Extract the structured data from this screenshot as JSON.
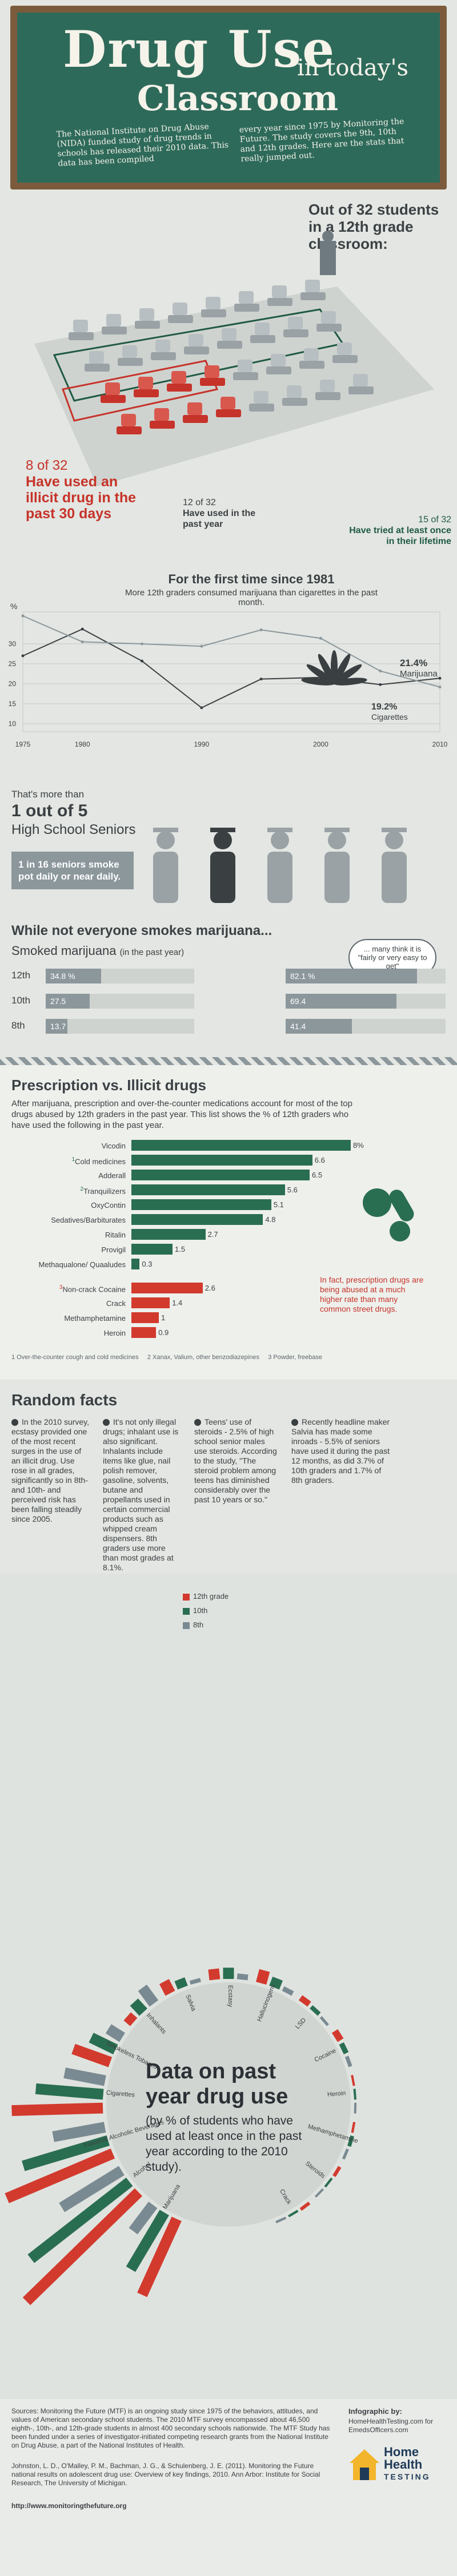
{
  "header": {
    "title_line1": "Drug Use",
    "title_line2": "in today's",
    "title_line3": "Classroom",
    "intro_left": "The National Institute on Drug Abuse (NIDA) funded study of drug trends in schools has released their 2010 data. This data has been compiled",
    "intro_right": "every year since 1975 by Monitoring the Future. The study covers the 9th, 10th and 12th grades. Here are the stats that really jumped out."
  },
  "classroom": {
    "heading": "Out of 32 students in a 12th grade classroom:",
    "stat1_num": "8 of 32",
    "stat1_text": "Have used an illicit drug in the past 30 days",
    "stat2_num": "12 of 32",
    "stat2_text": "Have used in the past year",
    "stat3_num": "15 of 32",
    "stat3_text": "Have tried at least once in their lifetime"
  },
  "trend": {
    "title": "For the first time since 1981",
    "subtitle": "More 12th graders consumed marijuana than cigarettes in the past month.",
    "y_unit": "%",
    "marijuana_label": "Marijuana",
    "marijuana_value": "21.4%",
    "cigarettes_label": "Cigarettes",
    "cigarettes_value": "19.2%"
  },
  "seniors": {
    "line1": "That's more than",
    "line2": "1 out of 5",
    "line3": "High School Seniors",
    "box": "1 in 16 seniors smoke pot daily or near daily."
  },
  "smoked": {
    "heading": "While not everyone smokes marijuana...",
    "subheading": "Smoked marijuana",
    "subheading_note": "(in the past year)",
    "bubble": "... many think it is \"fairly or very easy to get\"",
    "grades": [
      "12th",
      "10th",
      "8th"
    ]
  },
  "prescription": {
    "heading": "Prescription vs. Illicit drugs",
    "description": "After marijuana, prescription and over-the-counter medications account for most of the top drugs abused by 12th graders in the past year. This list shows the % of 12th graders who have used the following in the past year.",
    "note": "In fact, prescription drugs are being abused at a much higher rate than many common street drugs.",
    "footnote1": "1 Over-the-counter cough and cold medicines",
    "footnote2": "2 Xanax, Valium, other benzodiazepines",
    "footnote3": "3 Powder, freebase"
  },
  "facts": {
    "heading": "Random facts",
    "items": [
      "In the 2010 survey, ecstasy provided one of the most recent surges in the use of an illicit drug. Use rose in all grades, significantly so in 8th- and 10th- and perceived risk has been falling steadily since 2005.",
      "It's not only illegal drugs; inhalant use is also significant. Inhalants include items like glue, nail polish remover, gasoline, solvents, butane and propellants used in certain commercial products such as whipped cream dispensers. 8th graders use more than most grades at 8.1%.",
      "Teens' use of steroids - 2.5% of high school senior males use steroids. According to the study, \"The steroid problem among teens has diminished considerably over the past 10 years or so.\"",
      "Recently headline maker Salvia has made some inroads - 5.5% of seniors have used it during the past 12 months, as did 3.7% of 10th graders and 1.7% of 8th graders."
    ]
  },
  "radial": {
    "legend": [
      "12th grade",
      "10th",
      "8th"
    ],
    "title": "Data on past year drug use",
    "subtitle": "(by % of students who have used at least once in the past year according to the 2010 study)."
  },
  "footer": {
    "sources": "Sources: Monitoring the Future (MTF) is an ongoing study since 1975 of the behaviors, attitudes, and values of American secondary school students. The 2010 MTF survey encompassed about 46,500 eighth-, 10th-, and 12th-grade students in almost 400 secondary schools nationwide. The MTF Study has been funded under a series of investigator-initiated competing research grants from the National Institute on Drug Abuse, a part of the National Institutes of Health.",
    "citation": "Johnston, L. D., O'Malley, P. M., Bachman, J. G., & Schulenberg, J. E. (2011). Monitoring the Future national results on adolescent drug use: Overview of key findings, 2010. Ann Arbor: Institute for Social Research, The University of Michigan.",
    "url": "http://www.monitoringthefuture.org",
    "infographic_label": "Infographic by:",
    "infographic_url": "HomeHealthTesting.com  for EmedsOfficers.com",
    "brand_line1": "Home",
    "brand_line2": "Health",
    "brand_line3": "TESTING"
  },
  "colors": {
    "chalkboard": "#2e6a5a",
    "red": "#d23a2e",
    "green": "#2a6e52",
    "slate": "#7a8a92",
    "grey": "#b8bcb8"
  },
  "chart_data": [
    {
      "type": "line",
      "title": "For the first time since 1981",
      "x": [
        1975,
        1980,
        1985,
        1990,
        1995,
        2000,
        2005,
        2010
      ],
      "xticks": [
        1975,
        1980,
        1990,
        2000,
        2010
      ],
      "yticks": [
        10,
        15,
        20,
        25,
        30
      ],
      "ylim": [
        8,
        38
      ],
      "series": [
        {
          "name": "Marijuana",
          "values": [
            27,
            33.7,
            25.7,
            14,
            21.2,
            21.6,
            19.8,
            21.4
          ]
        },
        {
          "name": "Cigarettes",
          "values": [
            37,
            30.5,
            30,
            29.4,
            33.5,
            31.4,
            23.2,
            19.2
          ]
        }
      ]
    },
    {
      "type": "bar",
      "title": "Smoked marijuana",
      "categories": [
        "12th",
        "10th",
        "8th"
      ],
      "series": [
        {
          "name": "Smoked marijuana (in the past year)",
          "values": [
            34.8,
            27.5,
            13.7
          ]
        },
        {
          "name": "fairly or very easy to get",
          "values": [
            82.1,
            69.4,
            41.4
          ]
        }
      ]
    },
    {
      "type": "bar",
      "title": "Prescription vs. Illicit drugs",
      "categories": [
        "Vicodin",
        "Cold medicines",
        "Adderall",
        "Tranquilizers",
        "OxyContin",
        "Sedatives/Barbiturates",
        "Ritalin",
        "Provigil",
        "Methaqualone/ Quaaludes",
        "Non-crack Cocaine",
        "Crack",
        "Methamphetamine",
        "Heroin"
      ],
      "values": [
        8,
        6.6,
        6.5,
        5.6,
        5.1,
        4.8,
        2.7,
        1.5,
        0.3,
        2.6,
        1.4,
        1,
        0.9
      ],
      "groups": [
        "prescription",
        "prescription",
        "prescription",
        "prescription",
        "prescription",
        "prescription",
        "prescription",
        "prescription",
        "prescription",
        "illicit",
        "illicit",
        "illicit",
        "illicit"
      ],
      "superscripts": [
        "",
        "1",
        "",
        "2",
        "",
        "",
        "",
        "",
        "",
        "3",
        "",
        "",
        ""
      ]
    },
    {
      "type": "bar",
      "title": "Data on past year drug use",
      "categories": [
        "Marijuana",
        "Alcohol",
        "Flavored Alcoholic Beverages",
        "Cigarettes",
        "Smokeless Tobacco",
        "Inhalants",
        "Salvia",
        "Ecstasy",
        "Hallucinogens",
        "LSD",
        "Cocaine",
        "Heroin",
        "Methamphetamine",
        "Steroids",
        "Crack"
      ],
      "series": [
        {
          "name": "12th grade",
          "values": [
            34.8,
            65.2,
            47.9,
            38,
            16.3,
            3.6,
            5.5,
            4.5,
            5.5,
            2.6,
            2.9,
            0.9,
            1,
            1.5,
            1.4
          ]
        },
        {
          "name": "10th",
          "values": [
            27.5,
            52.1,
            36.9,
            28.2,
            11.3,
            5.7,
            3.7,
            4.7,
            4,
            1.9,
            2.2,
            0.8,
            1.6,
            1,
            1
          ]
        },
        {
          "name": "8th",
          "values": [
            13.7,
            29.3,
            21.9,
            17.2,
            6.8,
            8.1,
            1.7,
            2.4,
            2.1,
            1.2,
            1.6,
            0.8,
            1.2,
            0.5,
            1
          ]
        }
      ]
    }
  ]
}
